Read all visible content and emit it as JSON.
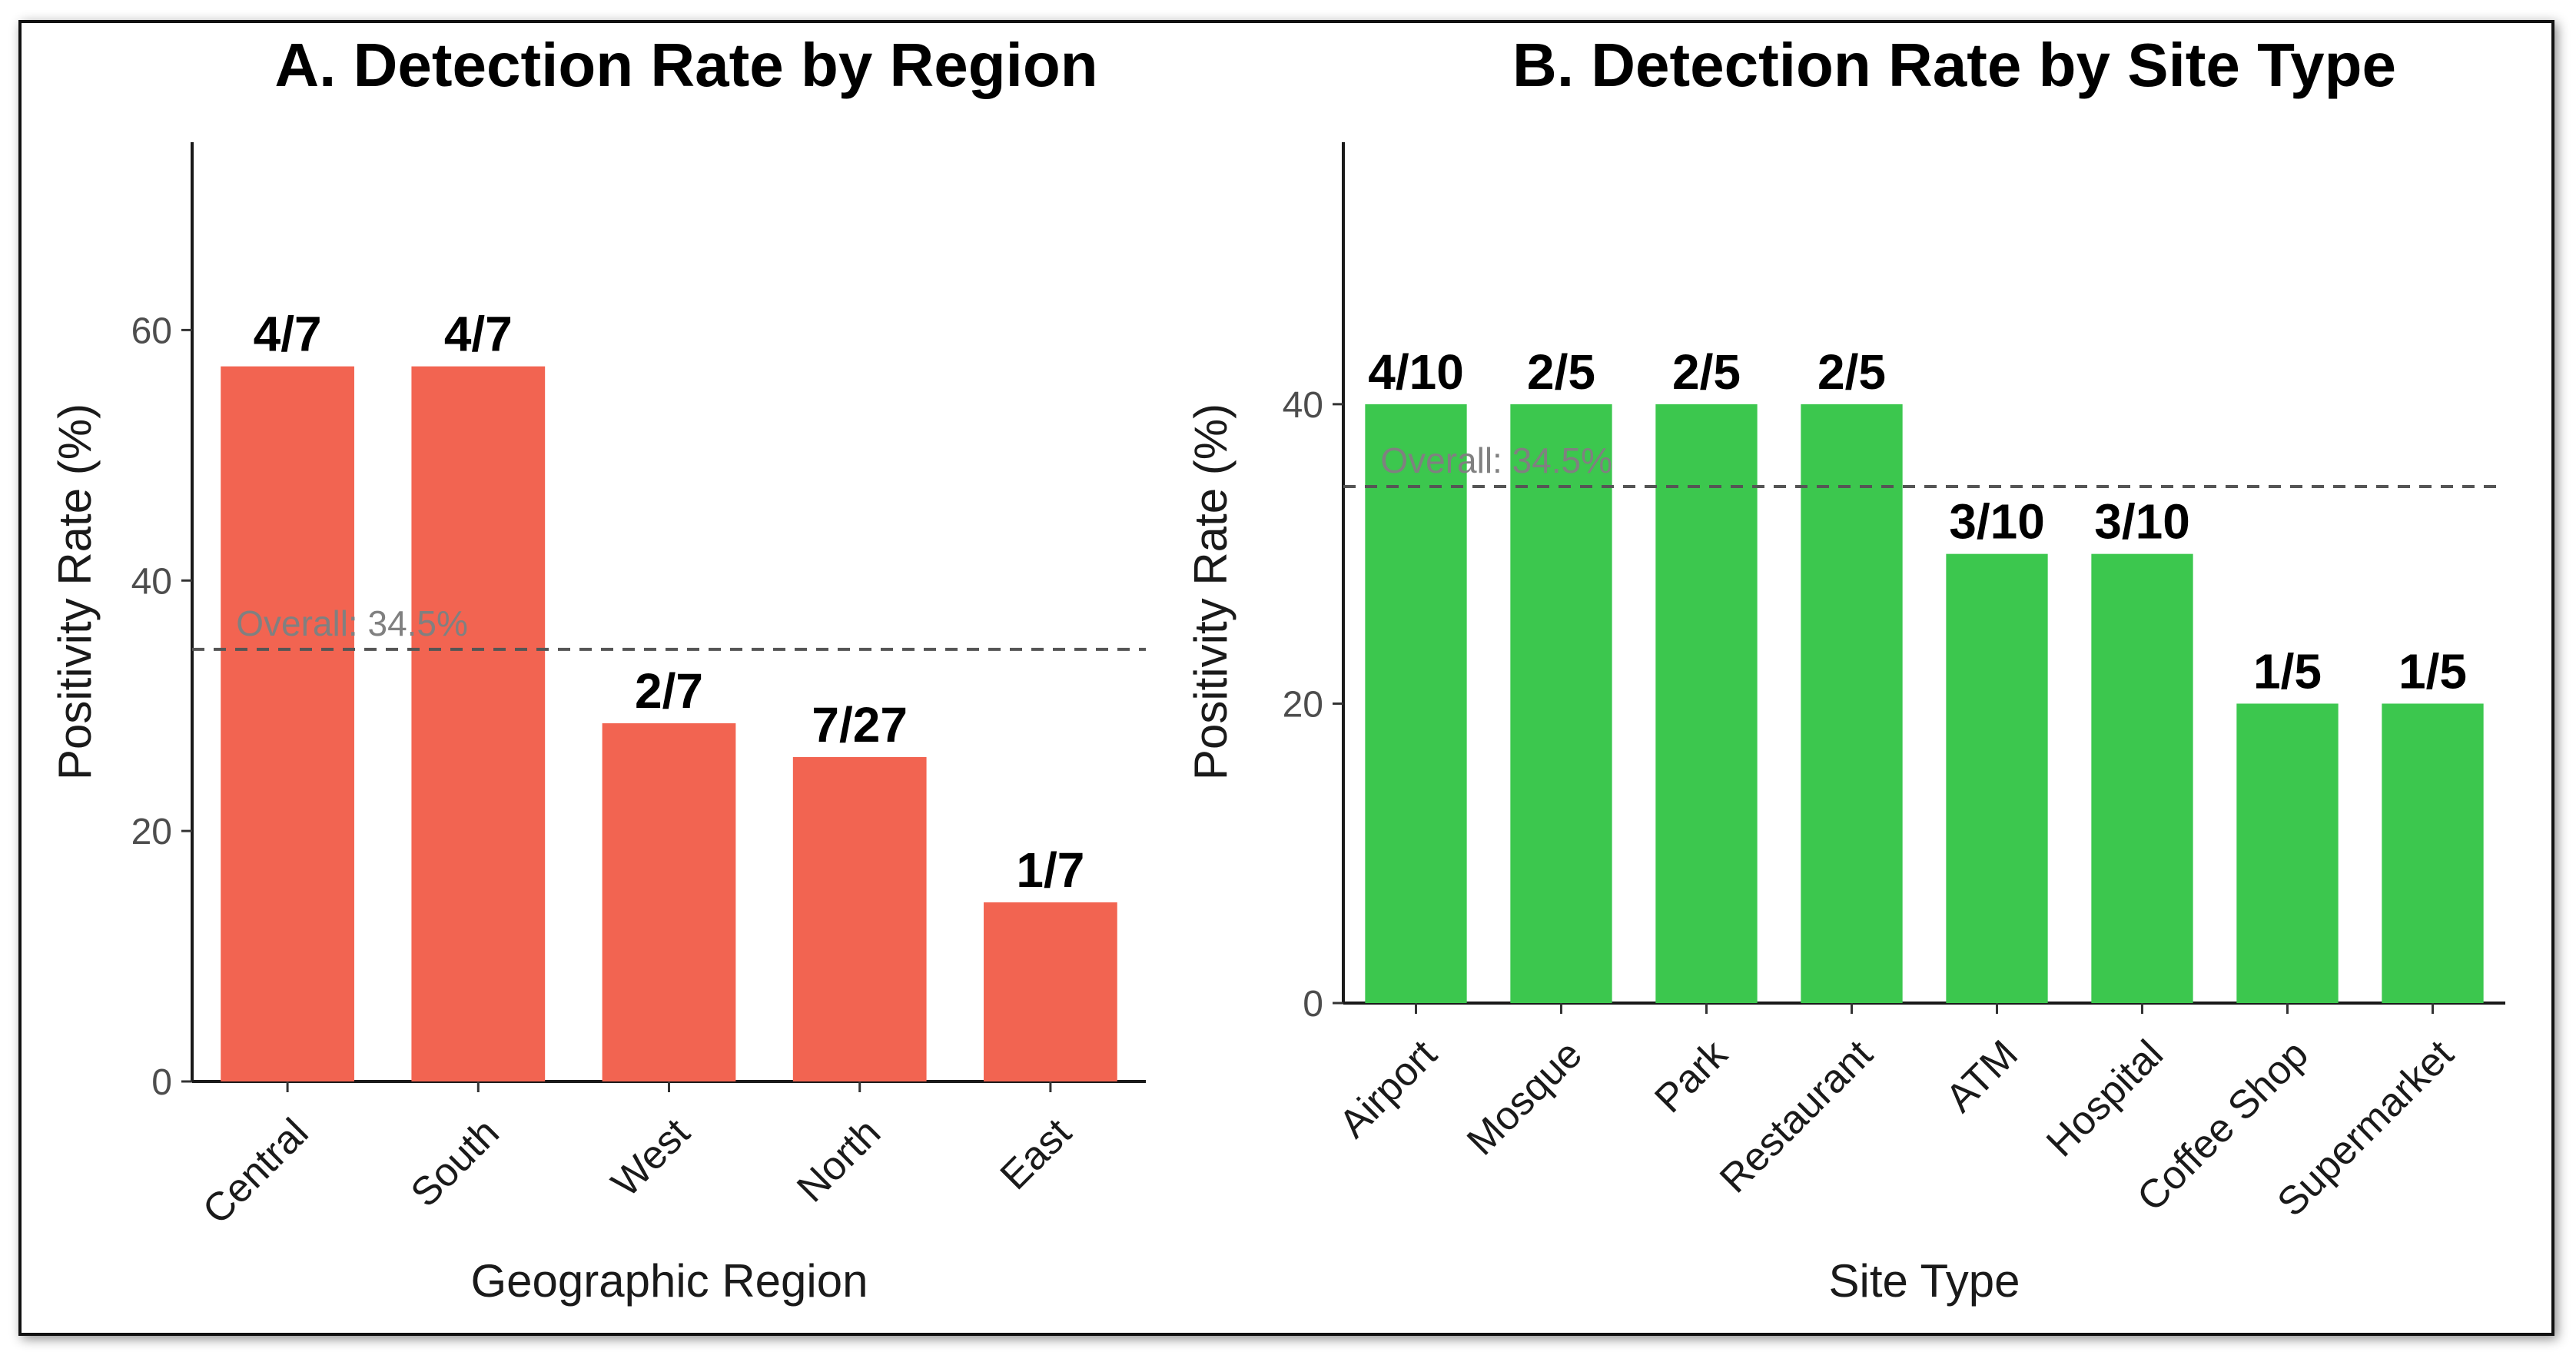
{
  "chart_data": [
    {
      "type": "bar",
      "title": "A. Detection Rate by Region",
      "xlabel": "Geographic Region",
      "ylabel": "Positivity Rate (%)",
      "ylim": [
        0,
        75
      ],
      "yticks": [
        0,
        20,
        40,
        60
      ],
      "categories": [
        "Central",
        "South",
        "West",
        "North",
        "East"
      ],
      "values": [
        57.1,
        57.1,
        28.6,
        25.9,
        14.3
      ],
      "bar_labels": [
        "4/7",
        "4/7",
        "2/7",
        "7/27",
        "1/7"
      ],
      "reference_line": {
        "value": 34.5,
        "label": "Overall: 34.5%"
      },
      "color": "#F26451"
    },
    {
      "type": "bar",
      "title": "B. Detection Rate by Site Type",
      "xlabel": "Site Type",
      "ylabel": "Positivity Rate (%)",
      "ylim": [
        0,
        57.5
      ],
      "yticks": [
        0,
        20,
        40
      ],
      "categories": [
        "Airport",
        "Mosque",
        "Park",
        "Restaurant",
        "ATM",
        "Hospital",
        "Coffee Shop",
        "Supermarket"
      ],
      "values": [
        40,
        40,
        40,
        40,
        30,
        30,
        20,
        20
      ],
      "bar_labels": [
        "4/10",
        "2/5",
        "2/5",
        "2/5",
        "3/10",
        "3/10",
        "1/5",
        "1/5"
      ],
      "reference_line": {
        "value": 34.5,
        "label": "Overall: 34.5%"
      },
      "color": "#3CC74E"
    }
  ]
}
